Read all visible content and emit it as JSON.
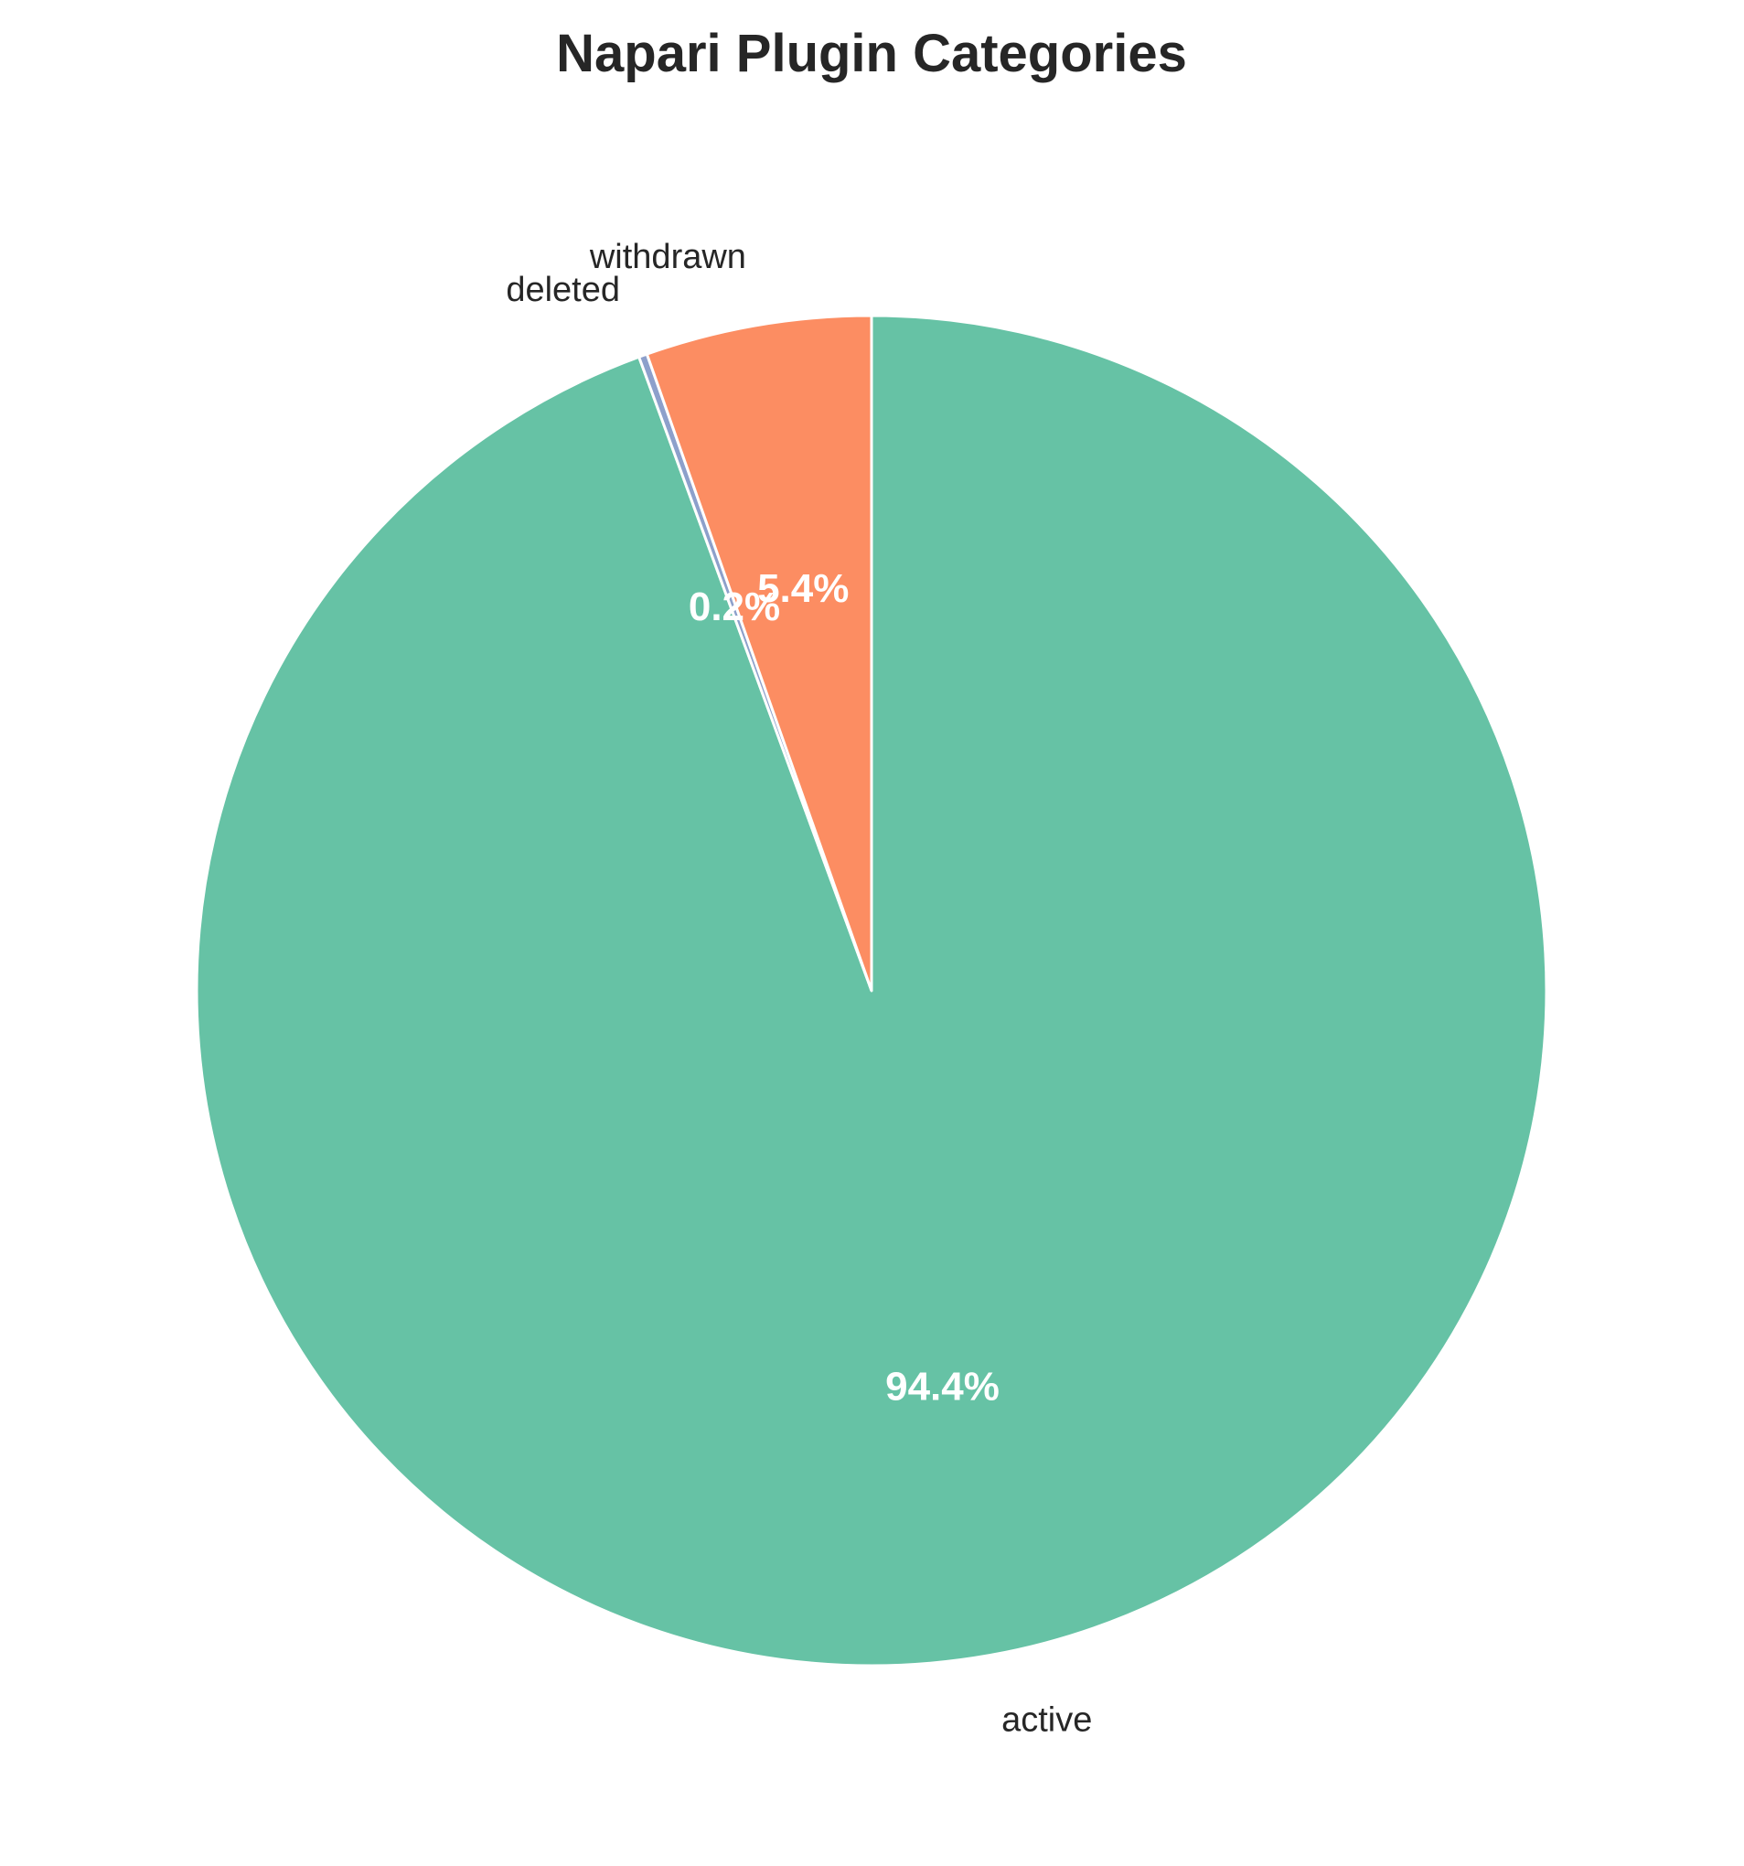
{
  "chart_data": {
    "type": "pie",
    "title": "Napari Plugin Categories",
    "start_angle_deg": 90,
    "direction": "clockwise",
    "slices": [
      {
        "label": "active",
        "value": 94.4,
        "pct_text": "94.4%",
        "color": "#66c2a5"
      },
      {
        "label": "deleted",
        "value": 0.2,
        "pct_text": "0.2%",
        "color": "#8da0cb"
      },
      {
        "label": "withdrawn",
        "value": 5.4,
        "pct_text": "5.4%",
        "color": "#fc8d62"
      }
    ],
    "slice_edge_color": "#ffffff"
  }
}
